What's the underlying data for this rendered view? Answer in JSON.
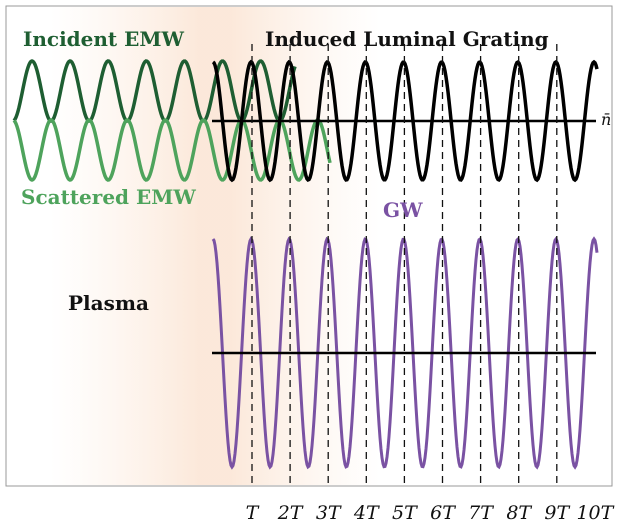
{
  "labels": {
    "incident": "Incident EMW",
    "scattered": "Scattered EMW",
    "grating": "Induced Luminal Grating",
    "gw": "GW",
    "plasma": "Plasma",
    "nbar": "n̄"
  },
  "ticks": [
    "T",
    "2T",
    "3T",
    "4T",
    "5T",
    "6T",
    "7T",
    "8T",
    "9T",
    "10T"
  ],
  "colors": {
    "incident": "#1e5e32",
    "scattered": "#4ea35c",
    "grating": "#000000",
    "gw": "#7a52a3",
    "axis": "#000000",
    "plasma_glow": "#fbe2cf"
  }
}
